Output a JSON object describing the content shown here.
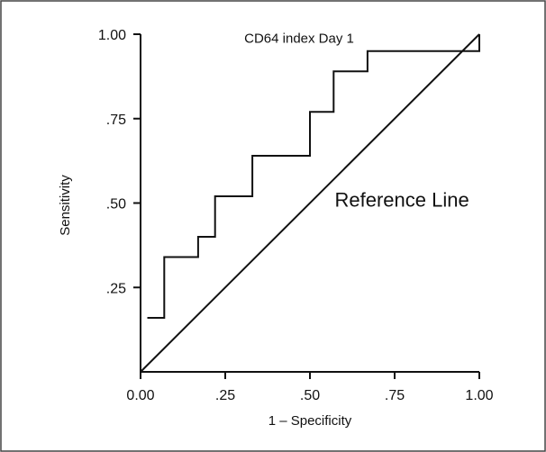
{
  "chart_data": {
    "type": "line",
    "xlabel": "1 – Specificity",
    "ylabel": "Sensitivity",
    "xlim": [
      0,
      1
    ],
    "ylim": [
      0,
      1
    ],
    "grid": false,
    "x_ticks": [
      {
        "value": 0,
        "label": "0.00"
      },
      {
        "value": 0.25,
        "label": ".25"
      },
      {
        "value": 0.5,
        "label": ".50"
      },
      {
        "value": 0.75,
        "label": ".75"
      },
      {
        "value": 1,
        "label": "1.00"
      }
    ],
    "y_ticks": [
      {
        "value": 0.25,
        "label": ".25"
      },
      {
        "value": 0.5,
        "label": ".50"
      },
      {
        "value": 0.75,
        "label": ".75"
      },
      {
        "value": 1,
        "label": "1.00"
      }
    ],
    "series": [
      {
        "name": "CD64 index Day 1",
        "color": "#111111",
        "step": true,
        "x": [
          0.02,
          0.07,
          0.07,
          0.17,
          0.17,
          0.22,
          0.22,
          0.33,
          0.33,
          0.5,
          0.5,
          0.57,
          0.57,
          0.67,
          0.67,
          0.97,
          0.97,
          1.0,
          1.0
        ],
        "y": [
          0.16,
          0.16,
          0.34,
          0.34,
          0.4,
          0.4,
          0.52,
          0.52,
          0.64,
          0.64,
          0.77,
          0.77,
          0.89,
          0.89,
          0.95,
          0.95,
          0.95,
          0.95,
          1.0
        ]
      },
      {
        "name": "Reference Line",
        "color": "#111111",
        "x": [
          0,
          1
        ],
        "y": [
          0,
          1
        ]
      }
    ],
    "annotations": [
      {
        "text": "CD64 index Day 1",
        "x": 0.63,
        "y": 0.975
      },
      {
        "text": "Reference Line",
        "x": 0.97,
        "y": 0.49
      }
    ]
  }
}
